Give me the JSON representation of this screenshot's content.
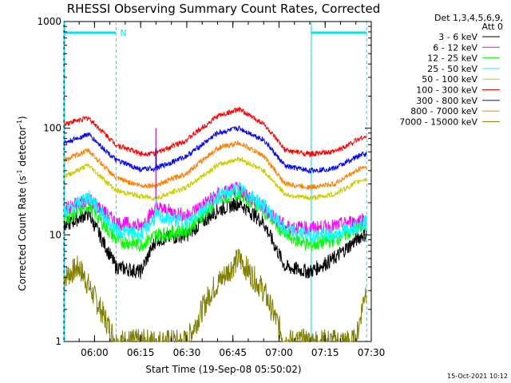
{
  "chart_data": {
    "type": "line",
    "title": "RHESSI Observing Summary Count Rates, Corrected",
    "ylabel": "Corrected Count Rate (s",
    "ylabel_sup1": "-1",
    "ylabel_mid": " detector",
    "ylabel_sup2": "-1",
    "ylabel_end": ")",
    "xlabel": "Start Time (19-Sep-08 05:50:02)",
    "y_scale": "log",
    "ylim": [
      1,
      1000
    ],
    "y_ticks": [
      {
        "value": 1,
        "label": "1"
      },
      {
        "value": 10,
        "label": "10"
      },
      {
        "value": 100,
        "label": "100"
      },
      {
        "value": 1000,
        "label": "1000"
      }
    ],
    "xlim": [
      "05:50:02",
      "07:30:00"
    ],
    "x_ticks": [
      "06:00",
      "06:15",
      "06:30",
      "06:45",
      "07:00",
      "07:15",
      "07:30"
    ],
    "legend": {
      "position": "right",
      "header_line1": "Det 1,3,4,5,6,9,",
      "header_line2": "Att 0"
    },
    "series": [
      {
        "name": "3 - 6 keV",
        "color": "#000000",
        "points": [
          [
            "05:50",
            12
          ],
          [
            "05:58",
            16
          ],
          [
            "06:07",
            5
          ],
          [
            "06:15",
            4.5
          ],
          [
            "06:20",
            9
          ],
          [
            "06:30",
            10
          ],
          [
            "06:40",
            17
          ],
          [
            "06:47",
            20
          ],
          [
            "06:55",
            13
          ],
          [
            "07:02",
            5
          ],
          [
            "07:10",
            4.5
          ],
          [
            "07:18",
            6
          ],
          [
            "07:27",
            10
          ]
        ]
      },
      {
        "name": "6 - 12 keV",
        "color": "#ff00ff",
        "points": [
          [
            "05:50",
            17
          ],
          [
            "05:58",
            22
          ],
          [
            "06:07",
            13
          ],
          [
            "06:15",
            12
          ],
          [
            "06:20",
            18
          ],
          [
            "06:30",
            15
          ],
          [
            "06:40",
            24
          ],
          [
            "06:47",
            27
          ],
          [
            "06:55",
            18
          ],
          [
            "07:02",
            12
          ],
          [
            "07:10",
            11.5
          ],
          [
            "07:18",
            12
          ],
          [
            "07:27",
            14
          ]
        ]
      },
      {
        "name": "12 - 25 keV",
        "color": "#00ff00",
        "points": [
          [
            "05:50",
            14
          ],
          [
            "05:58",
            19
          ],
          [
            "06:07",
            9
          ],
          [
            "06:15",
            8
          ],
          [
            "06:20",
            10
          ],
          [
            "06:30",
            11
          ],
          [
            "06:40",
            21
          ],
          [
            "06:47",
            25
          ],
          [
            "06:55",
            17
          ],
          [
            "07:02",
            10
          ],
          [
            "07:10",
            8
          ],
          [
            "07:18",
            9
          ],
          [
            "07:27",
            12
          ]
        ]
      },
      {
        "name": "25 - 50 keV",
        "color": "#00ffff",
        "points": [
          [
            "05:50",
            16
          ],
          [
            "05:58",
            23
          ],
          [
            "06:07",
            11
          ],
          [
            "06:15",
            10
          ],
          [
            "06:20",
            15
          ],
          [
            "06:30",
            13
          ],
          [
            "06:40",
            23
          ],
          [
            "06:47",
            27
          ],
          [
            "06:55",
            19
          ],
          [
            "07:02",
            11
          ],
          [
            "07:10",
            10
          ],
          [
            "07:18",
            10
          ],
          [
            "07:27",
            13
          ]
        ]
      },
      {
        "name": "50 - 100 keV",
        "color": "#cccc00",
        "points": [
          [
            "05:50",
            35
          ],
          [
            "05:58",
            45
          ],
          [
            "06:07",
            26
          ],
          [
            "06:15",
            23
          ],
          [
            "06:20",
            22
          ],
          [
            "06:30",
            28
          ],
          [
            "06:40",
            45
          ],
          [
            "06:47",
            52
          ],
          [
            "06:55",
            40
          ],
          [
            "07:02",
            24
          ],
          [
            "07:10",
            22
          ],
          [
            "07:18",
            24
          ],
          [
            "07:27",
            33
          ]
        ]
      },
      {
        "name": "100 - 300 keV",
        "color": "#ff0000",
        "points": [
          [
            "05:50",
            110
          ],
          [
            "05:58",
            125
          ],
          [
            "06:07",
            70
          ],
          [
            "06:15",
            58
          ],
          [
            "06:20",
            58
          ],
          [
            "06:30",
            78
          ],
          [
            "06:40",
            130
          ],
          [
            "06:47",
            150
          ],
          [
            "06:55",
            110
          ],
          [
            "07:02",
            62
          ],
          [
            "07:10",
            57
          ],
          [
            "07:18",
            60
          ],
          [
            "07:27",
            82
          ]
        ]
      },
      {
        "name": "300 - 800 keV",
        "color": "#0000ff",
        "points": [
          [
            "05:50",
            72
          ],
          [
            "05:58",
            88
          ],
          [
            "06:07",
            50
          ],
          [
            "06:15",
            41
          ],
          [
            "06:20",
            42
          ],
          [
            "06:30",
            55
          ],
          [
            "06:40",
            90
          ],
          [
            "06:47",
            100
          ],
          [
            "06:55",
            78
          ],
          [
            "07:02",
            44
          ],
          [
            "07:10",
            40
          ],
          [
            "07:18",
            42
          ],
          [
            "07:27",
            57
          ]
        ]
      },
      {
        "name": "800 - 7000 keV",
        "color": "#ff8000",
        "points": [
          [
            "05:50",
            50
          ],
          [
            "05:58",
            62
          ],
          [
            "06:07",
            34
          ],
          [
            "06:15",
            29
          ],
          [
            "06:20",
            29
          ],
          [
            "06:30",
            38
          ],
          [
            "06:40",
            65
          ],
          [
            "06:47",
            73
          ],
          [
            "06:55",
            55
          ],
          [
            "07:02",
            30
          ],
          [
            "07:10",
            28
          ],
          [
            "07:18",
            30
          ],
          [
            "07:27",
            43
          ]
        ]
      },
      {
        "name": "7000 - 15000 keV",
        "color": "#808000",
        "points": [
          [
            "05:50",
            4
          ],
          [
            "05:55",
            5
          ],
          [
            "06:02",
            2
          ],
          [
            "06:07",
            1
          ],
          [
            "06:30",
            1
          ],
          [
            "06:38",
            3
          ],
          [
            "06:47",
            6
          ],
          [
            "06:55",
            3
          ],
          [
            "07:02",
            1
          ],
          [
            "07:25",
            1
          ],
          [
            "07:28",
            3
          ]
        ]
      }
    ],
    "spikes": [
      {
        "series": "6 - 12 keV",
        "time": "06:20",
        "value": 100
      },
      {
        "series": "300 - 800 keV",
        "time": "06:20",
        "value": 65
      },
      {
        "series": "25 - 50 keV",
        "time": "06:20",
        "value": 22
      }
    ],
    "annotations": {
      "night_markers": [
        {
          "start": "05:50:02",
          "end": "06:07:00",
          "label": "N"
        },
        {
          "start": "07:10:30",
          "end": "07:28:30",
          "label": ""
        }
      ],
      "saa_line_time": "07:10:30"
    }
  },
  "timestamp": "15-Oct-2021 10:12",
  "colors": {
    "night_marker": "#00e5ee",
    "axis": "#000000"
  }
}
